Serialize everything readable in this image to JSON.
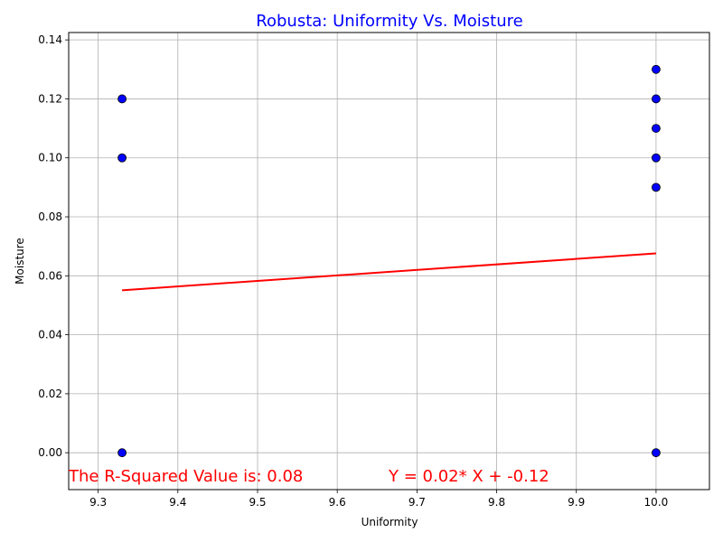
{
  "chart_data": {
    "type": "scatter",
    "title": "Robusta: Uniformity Vs. Moisture",
    "xlabel": "Uniformity",
    "ylabel": "Moisture",
    "xlim": [
      9.263,
      10.067
    ],
    "ylim": [
      -0.0125,
      0.1425
    ],
    "grid": true,
    "x_ticks": [
      "9.3",
      "9.4",
      "9.5",
      "9.6",
      "9.7",
      "9.8",
      "9.9",
      "10.0"
    ],
    "y_ticks": [
      "0.00",
      "0.02",
      "0.04",
      "0.06",
      "0.08",
      "0.10",
      "0.12",
      "0.14"
    ],
    "points": [
      {
        "x": 9.33,
        "y": 0.12
      },
      {
        "x": 9.33,
        "y": 0.1
      },
      {
        "x": 9.33,
        "y": 0.0
      },
      {
        "x": 10.0,
        "y": 0.13
      },
      {
        "x": 10.0,
        "y": 0.12
      },
      {
        "x": 10.0,
        "y": 0.11
      },
      {
        "x": 10.0,
        "y": 0.1
      },
      {
        "x": 10.0,
        "y": 0.09
      },
      {
        "x": 10.0,
        "y": 0.0
      }
    ],
    "fit_line": {
      "x": [
        9.33,
        10.0
      ],
      "y": [
        0.0551,
        0.0676
      ]
    },
    "annotations": {
      "r_squared": "The R-Squared Value is: 0.08",
      "equation": "Y = 0.02* X + -0.12"
    },
    "colors": {
      "title": "#0000ff",
      "points_fill": "#0000ff",
      "points_edge": "#000000",
      "fit_line": "#ff0000",
      "annotation": "#ff0000",
      "grid": "#b0b0b0"
    }
  }
}
